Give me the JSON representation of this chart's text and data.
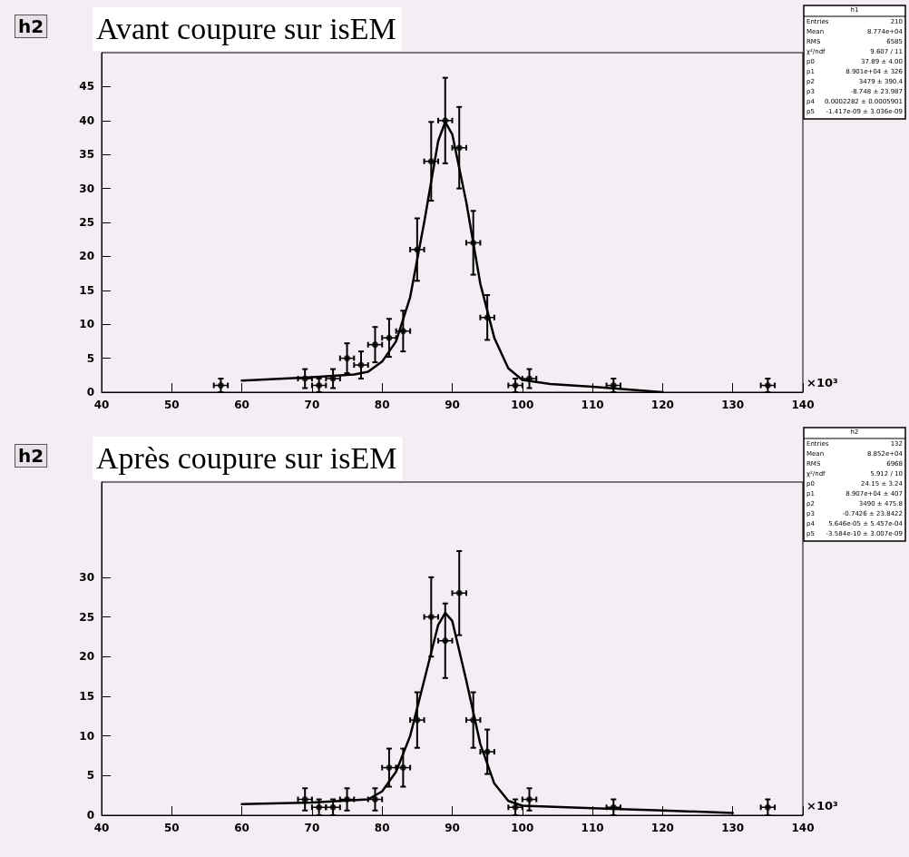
{
  "chart_data": [
    {
      "type": "scatter",
      "title": "Avant coupure sur isEM",
      "xlabel": "×10³",
      "xlim": [
        40,
        140
      ],
      "xticks": [
        40,
        50,
        60,
        70,
        80,
        90,
        100,
        110,
        120,
        130,
        140
      ],
      "ylim": [
        0,
        50
      ],
      "yticks": [
        0,
        5,
        10,
        15,
        20,
        25,
        30,
        35,
        40,
        45
      ],
      "grid": false,
      "annotations": [
        "h2",
        "h1",
        "Entries 210",
        "Mean 8.774e+04",
        "RMS 6585",
        "χ²/ndf 9.607 / 11",
        "p0 37.89 ± 4.00",
        "p1 8.901e+04 ± 326",
        "p2 3479 ± 390.4",
        "p3 -8.748 ± 23.987",
        "p4 0.0002282 ± 0.0005901",
        "p5 -1.417e-09 ± 3.036e-09"
      ],
      "series": [
        {
          "type": "scatter",
          "color": "#000000",
          "marker": "circle",
          "x": [
            57,
            69,
            71,
            73,
            75,
            77,
            79,
            81,
            83,
            85,
            87,
            89,
            91,
            93,
            95,
            99,
            101,
            113,
            135
          ],
          "values": [
            1,
            2,
            1,
            2,
            5,
            4,
            7,
            8,
            9,
            21,
            34,
            40,
            36,
            22,
            11,
            1,
            2,
            1,
            1
          ],
          "errors": [
            1,
            1.4,
            1,
            1.4,
            2.2,
            2,
            2.6,
            2.8,
            3,
            4.6,
            5.8,
            6.3,
            6,
            4.7,
            3.3,
            1,
            1.4,
            1,
            1
          ],
          "xerrors": [
            1,
            1,
            1,
            1,
            1,
            1,
            1,
            1,
            1,
            1,
            1,
            1,
            1,
            1,
            1,
            1,
            1,
            1,
            1
          ]
        },
        {
          "type": "line",
          "color": "#000000",
          "marker": "none",
          "line_style": "solid",
          "x": [
            60,
            70,
            76,
            78,
            80,
            82,
            84,
            86,
            88,
            89,
            90,
            92,
            94,
            96,
            98,
            100,
            104,
            110,
            115,
            120
          ],
          "values": [
            1.7,
            2.2,
            2.6,
            3,
            4.5,
            7.5,
            14,
            25,
            37,
            39.8,
            38,
            28,
            16,
            8,
            3.5,
            1.8,
            1.2,
            0.8,
            0.4,
            0
          ]
        }
      ]
    },
    {
      "type": "scatter",
      "title": "Après coupure sur isEM",
      "xlabel": "×10³",
      "xlim": [
        40,
        140
      ],
      "xticks": [
        40,
        50,
        60,
        70,
        80,
        90,
        100,
        110,
        120,
        130,
        140
      ],
      "ylim": [
        0,
        42
      ],
      "yticks": [
        0,
        5,
        10,
        15,
        20,
        25,
        30
      ],
      "grid": false,
      "annotations": [
        "h2",
        "h2",
        "Entries 132",
        "Mean 8.852e+04",
        "RMS 6968",
        "χ²/ndf 5.912 / 10",
        "p0 24.15 ± 3.24",
        "p1 8.907e+04 ± 407",
        "p2 3490 ± 475.8",
        "p3 -0.7426 ± 23.8422",
        "p4 5.646e-05 ± 5.457e-04",
        "p5 -3.584e-10 ± 3.007e-09"
      ],
      "series": [
        {
          "type": "scatter",
          "color": "#000000",
          "marker": "circle",
          "x": [
            69,
            71,
            73,
            75,
            79,
            81,
            83,
            85,
            87,
            89,
            91,
            93,
            95,
            99,
            101,
            113,
            135
          ],
          "values": [
            2,
            1,
            1,
            2,
            2,
            6,
            6,
            12,
            25,
            22,
            28,
            12,
            8,
            1,
            2,
            1,
            1
          ],
          "errors": [
            1.4,
            1,
            1,
            1.4,
            1.4,
            2.4,
            2.4,
            3.5,
            5,
            4.7,
            5.3,
            3.5,
            2.8,
            1,
            1.4,
            1,
            1
          ],
          "xerrors": [
            1,
            1,
            1,
            1,
            1,
            1,
            1,
            1,
            1,
            1,
            1,
            1,
            1,
            1,
            1,
            1,
            1
          ]
        },
        {
          "type": "line",
          "color": "#000000",
          "marker": "none",
          "line_style": "solid",
          "x": [
            60,
            70,
            78,
            80,
            82,
            84,
            86,
            88,
            89,
            90,
            92,
            94,
            96,
            98,
            100,
            110,
            120,
            130
          ],
          "values": [
            1.4,
            1.6,
            2,
            3,
            5.5,
            10,
            17,
            24,
            25.5,
            24.5,
            17,
            9,
            4,
            1.8,
            1.2,
            0.9,
            0.6,
            0.3
          ]
        }
      ]
    }
  ]
}
